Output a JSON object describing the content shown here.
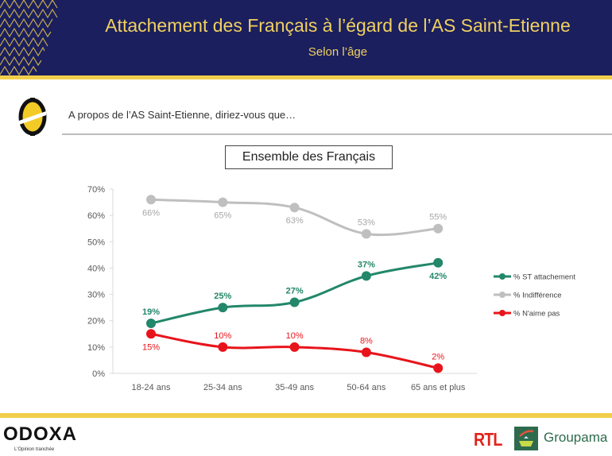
{
  "header": {
    "title": "Attachement des Français à l’égard de l’AS Saint-Etienne",
    "subtitle": "Selon l’âge"
  },
  "question": {
    "logo_icon": "asse-logo-icon",
    "text": "A propos de l’AS Saint-Etienne, diriez-vous que…"
  },
  "scope_label": "Ensemble des Français",
  "colors": {
    "navy": "#1b1f5e",
    "gold": "#f0d060",
    "band": "#f2cf4a",
    "attachement": "#23876a",
    "indifference": "#bfbfbf",
    "naime_pas": "#e8141b"
  },
  "chart_data": {
    "type": "line",
    "title": "Ensemble des Français",
    "xlabel": "",
    "ylabel": "",
    "categories": [
      "18-24 ans",
      "25-34 ans",
      "35-49 ans",
      "50-64 ans",
      "65 ans et plus"
    ],
    "ylim": [
      0,
      70
    ],
    "yticks": [
      "0%",
      "10%",
      "20%",
      "30%",
      "40%",
      "50%",
      "60%",
      "70%"
    ],
    "ytick_values": [
      0,
      10,
      20,
      30,
      40,
      50,
      60,
      70
    ],
    "grid": false,
    "legend_position": "right",
    "series": [
      {
        "name": "% ST attachement",
        "key": "attachement",
        "values": [
          19,
          25,
          27,
          37,
          42
        ],
        "labels": [
          "19%",
          "25%",
          "27%",
          "37%",
          "42%"
        ],
        "label_pos": [
          "above",
          "above",
          "above",
          "above",
          "below"
        ],
        "bold_labels": true
      },
      {
        "name": "% Indifférence",
        "key": "indifference",
        "values": [
          66,
          65,
          63,
          53,
          55
        ],
        "labels": [
          "66%",
          "65%",
          "63%",
          "53%",
          "55%"
        ],
        "label_pos": [
          "below",
          "below",
          "below",
          "above",
          "above"
        ],
        "bold_labels": false
      },
      {
        "name": "% N'aime pas",
        "key": "naime_pas",
        "values": [
          15,
          10,
          10,
          8,
          2
        ],
        "labels": [
          "15%",
          "10%",
          "10%",
          "8%",
          "2%"
        ],
        "label_pos": [
          "below",
          "above",
          "above",
          "above",
          "above"
        ],
        "bold_labels": false
      }
    ]
  },
  "footer": {
    "brand": "ODOXA",
    "tagline": "L'Opinion tranchée",
    "partner1": "RTL",
    "partner2": "Groupama",
    "partner2_icon": "groupama-logo-icon"
  }
}
